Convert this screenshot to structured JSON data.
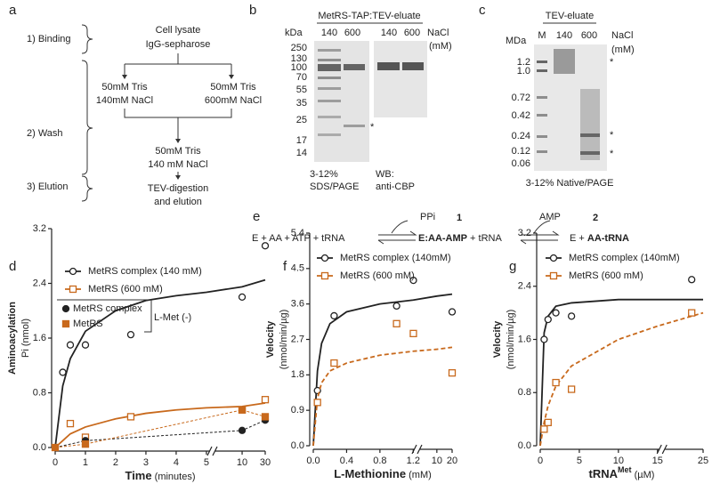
{
  "figure": {
    "a": {
      "label": "a",
      "steps": [
        "1) Binding",
        "2) Wash",
        "3) Elution"
      ],
      "boxes": [
        "Cell lysate",
        "IgG-sepharose",
        "50mM Tris",
        "140mM NaCl",
        "50mM Tris",
        "600mM NaCl",
        "50mM Tris",
        "140 mM NaCl",
        "TEV-digestion",
        "and elution"
      ]
    },
    "b": {
      "label": "b",
      "title": "MetRS-TAP:TEV-eluate",
      "unit": "kDa",
      "lanes": [
        "140",
        "600",
        "140",
        "600"
      ],
      "salt": "NaCl",
      "salt_unit": "(mM)",
      "markers": [
        "250",
        "130",
        "100",
        "70",
        "55",
        "35",
        "25",
        "17",
        "14"
      ],
      "star": "*",
      "captions": [
        "3-12%",
        "SDS/PAGE",
        "WB:",
        "anti-CBP"
      ]
    },
    "c": {
      "label": "c",
      "title": "TEV-eluate",
      "unit": "MDa",
      "lanes": [
        "M",
        "140",
        "600"
      ],
      "salt": "NaCl",
      "salt_unit": "(mM)",
      "markers": [
        "1.2",
        "1.0",
        "0.72",
        "0.42",
        "0.24",
        "0.12",
        "0.06"
      ],
      "stars": [
        "*",
        "*",
        "*"
      ],
      "caption": "3-12% Native/PAGE"
    },
    "e": {
      "label": "e",
      "left": "E + AA + ATP + tRNA",
      "ppi": "PPi",
      "n1": "1",
      "mid_bold": "E:AA-AMP",
      "mid": " + tRNA",
      "amp": "AMP",
      "n2": "2",
      "right": "E + ",
      "right_bold": "AA-tRNA"
    }
  },
  "chart_data": [
    {
      "type": "scatter",
      "panel_label": "d",
      "ylabel": "Aminoacylation",
      "ylabel_sub": "Pi (nmol)",
      "xlabel": "Time",
      "xlabel_unit": " (minutes)",
      "xlim": [
        0,
        30
      ],
      "xticks": [
        0,
        1,
        2,
        3,
        4,
        5,
        10,
        30
      ],
      "x_break_after": 5,
      "ylim": [
        0,
        3.2
      ],
      "yticks": [
        {
          "value": 0,
          "label": "0.0"
        },
        0.8,
        1.6,
        2.4,
        3.2
      ],
      "inset_legend_title": "L-Met (-)",
      "series": [
        {
          "name": "MetRS complex (140 mM)",
          "color": "#222222",
          "marker": "open-circle",
          "x": [
            0.25,
            0.5,
            1,
            2.5,
            10,
            30
          ],
          "values": [
            1.1,
            1.5,
            1.5,
            1.65,
            2.2,
            2.95
          ],
          "fit_x": [
            0,
            0.25,
            0.5,
            1,
            2,
            3,
            4,
            5,
            10,
            30
          ],
          "fit_values": [
            0,
            0.9,
            1.3,
            1.7,
            2.0,
            2.15,
            2.22,
            2.27,
            2.35,
            2.45
          ]
        },
        {
          "name": "MetRS (600 mM)",
          "color": "#c8691c",
          "marker": "open-square",
          "x": [
            0.5,
            1,
            2.5,
            10,
            30
          ],
          "values": [
            0.35,
            0.15,
            0.45,
            0.55,
            0.7
          ],
          "fit_x": [
            0,
            0.25,
            0.5,
            1,
            2,
            3,
            4,
            5,
            10,
            30
          ],
          "fit_values": [
            0,
            0.1,
            0.2,
            0.3,
            0.42,
            0.5,
            0.55,
            0.58,
            0.6,
            0.65
          ]
        },
        {
          "name": "MetRS complex",
          "color": "#222222",
          "marker": "filled-circle",
          "inset": true,
          "line": "dashed",
          "x": [
            0,
            1,
            10,
            30
          ],
          "values": [
            0,
            0.1,
            0.25,
            0.4
          ]
        },
        {
          "name": "MetRS",
          "color": "#c8691c",
          "marker": "filled-square",
          "inset": true,
          "line": "dashed",
          "x": [
            0,
            1,
            10,
            30
          ],
          "values": [
            0,
            0.05,
            0.55,
            0.45
          ]
        }
      ]
    },
    {
      "type": "scatter",
      "panel_label": "f",
      "ylabel": "Velocity",
      "ylabel_sub": "(nmol/min/µg)",
      "xlabel": "L-Methionine",
      "xlabel_unit": " (mM)",
      "xlim": [
        0,
        20
      ],
      "xticks": [
        {
          "value": 0,
          "label": "0.0"
        },
        0.4,
        0.8,
        1.2,
        10,
        20
      ],
      "x_break_after": 1.2,
      "ylim": [
        0,
        5.4
      ],
      "yticks": [
        {
          "value": 0,
          "label": "0.0"
        },
        0.9,
        1.8,
        2.7,
        3.6,
        4.5,
        5.4
      ],
      "series": [
        {
          "name": "MetRS complex (140mM)",
          "color": "#222222",
          "marker": "open-circle",
          "x": [
            0.05,
            0.25,
            1.0,
            1.25,
            20
          ],
          "values": [
            1.4,
            3.3,
            3.55,
            4.2,
            3.4
          ],
          "fit_x": [
            0,
            0.05,
            0.1,
            0.2,
            0.4,
            0.8,
            1.2,
            10,
            20
          ],
          "fit_values": [
            0,
            1.9,
            2.6,
            3.1,
            3.4,
            3.6,
            3.7,
            3.8,
            3.85
          ]
        },
        {
          "name": "MetRS (600 mM)",
          "color": "#c8691c",
          "marker": "open-square",
          "fit_dash": true,
          "x": [
            0.05,
            0.25,
            1.0,
            1.25,
            20
          ],
          "values": [
            1.1,
            2.1,
            3.1,
            2.85,
            1.85
          ],
          "fit_x": [
            0,
            0.05,
            0.1,
            0.2,
            0.4,
            0.8,
            1.2,
            10,
            20
          ],
          "fit_values": [
            0,
            1.2,
            1.6,
            1.9,
            2.1,
            2.3,
            2.4,
            2.45,
            2.5
          ]
        }
      ]
    },
    {
      "type": "scatter",
      "panel_label": "g",
      "ylabel": "Velocity",
      "ylabel_sub": "(nmol/min/µg)",
      "xlabel": "tRNA",
      "xlabel_sup": "Met",
      "xlabel_unit": " (µM)",
      "xlim": [
        0,
        25
      ],
      "xticks": [
        0,
        5,
        10,
        15,
        25
      ],
      "x_break_after": 15,
      "ylim": [
        0,
        3.2
      ],
      "yticks": [
        {
          "value": 0,
          "label": "0.0"
        },
        0.8,
        1.6,
        2.4,
        3.2
      ],
      "series": [
        {
          "name": "MetRS complex (140mM)",
          "color": "#222222",
          "marker": "open-circle",
          "x": [
            0.5,
            1,
            2,
            4,
            22.5
          ],
          "values": [
            1.6,
            1.9,
            2.0,
            1.95,
            2.5
          ],
          "fit_x": [
            0,
            0.5,
            1,
            2,
            4,
            10,
            15,
            25
          ],
          "fit_values": [
            0,
            1.7,
            1.95,
            2.1,
            2.15,
            2.2,
            2.2,
            2.2
          ]
        },
        {
          "name": "MetRS (600 mM)",
          "color": "#c8691c",
          "marker": "open-square",
          "fit_dash": true,
          "x": [
            0.5,
            1,
            2,
            4,
            22.5
          ],
          "values": [
            0.25,
            0.35,
            0.95,
            0.85,
            2.0
          ],
          "fit_x": [
            0,
            0.5,
            1,
            2,
            4,
            10,
            15,
            25
          ],
          "fit_values": [
            0,
            0.35,
            0.6,
            0.9,
            1.2,
            1.6,
            1.8,
            2.0
          ]
        }
      ]
    }
  ]
}
